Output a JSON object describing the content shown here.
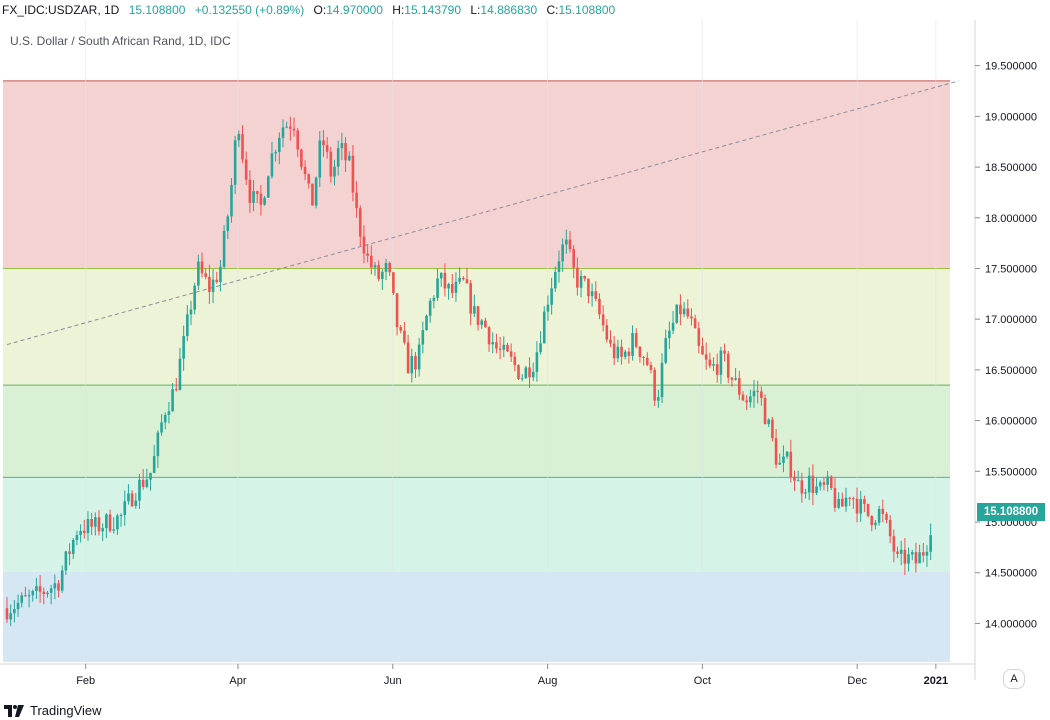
{
  "header": {
    "symbol": "FX_IDC:USDZAR, 1D",
    "last": "15.108800",
    "change": "+0.132550 (+0.89%)",
    "o_label": "O:",
    "o_value": "14.970000",
    "h_label": "H:",
    "h_value": "15.143790",
    "l_label": "L:",
    "l_value": "14.886830",
    "c_label": "C:",
    "c_value": "15.108800"
  },
  "title": "U.S. Dollar / South African Rand, 1D, IDC",
  "last_price_tag": "15.108800",
  "axis_button": "A",
  "logo_text": "TradingView",
  "colors": {
    "up": "#26a69a",
    "down": "#ef5350"
  },
  "chart_data": {
    "type": "candlestick",
    "y_ticks": [
      "14.000000",
      "14.500000",
      "15.000000",
      "15.500000",
      "16.000000",
      "16.500000",
      "17.000000",
      "17.500000",
      "18.000000",
      "18.500000",
      "19.000000",
      "19.500000"
    ],
    "ylim": [
      13.6,
      19.95
    ],
    "x_ticks": [
      {
        "label": "Feb",
        "day": 31
      },
      {
        "label": "Apr",
        "day": 91
      },
      {
        "label": "Jun",
        "day": 152
      },
      {
        "label": "Aug",
        "day": 213
      },
      {
        "label": "Oct",
        "day": 274
      },
      {
        "label": "Dec",
        "day": 335
      },
      {
        "label": "2021",
        "day": 366
      }
    ],
    "xlim": [
      0,
      370
    ],
    "zones": [
      {
        "from": 19.35,
        "to": 17.5,
        "fill": "#f4d2d2",
        "line": "#c0504d"
      },
      {
        "from": 17.5,
        "to": 16.35,
        "fill": "#ecf3d6",
        "line": "#9cc043"
      },
      {
        "from": 16.35,
        "to": 15.44,
        "fill": "#d9f0d5",
        "line": "#5cb85c"
      },
      {
        "from": 15.44,
        "to": 14.51,
        "fill": "#d5f3e6",
        "line": "#3cb9a3"
      },
      {
        "from": 14.51,
        "to": 13.62,
        "fill": "#d4e7f3",
        "line": null
      }
    ],
    "trendline": {
      "from": {
        "day": 0,
        "price": 16.75
      },
      "to": {
        "day": 375,
        "price": 19.35
      }
    },
    "anchors": [
      [
        0,
        14.15
      ],
      [
        10,
        14.25
      ],
      [
        20,
        14.4
      ],
      [
        28,
        14.95
      ],
      [
        35,
        14.95
      ],
      [
        45,
        15.05
      ],
      [
        50,
        15.3
      ],
      [
        57,
        15.5
      ],
      [
        62,
        16.1
      ],
      [
        66,
        16.3
      ],
      [
        70,
        16.8
      ],
      [
        75,
        17.5
      ],
      [
        80,
        17.3
      ],
      [
        84,
        17.5
      ],
      [
        88,
        18.2
      ],
      [
        91,
        19.0
      ],
      [
        93,
        18.6
      ],
      [
        96,
        18.2
      ],
      [
        100,
        18.1
      ],
      [
        103,
        18.5
      ],
      [
        108,
        18.9
      ],
      [
        113,
        18.95
      ],
      [
        117,
        18.45
      ],
      [
        120,
        18.1
      ],
      [
        124,
        18.8
      ],
      [
        128,
        18.4
      ],
      [
        131,
        18.7
      ],
      [
        135,
        18.5
      ],
      [
        138,
        18.0
      ],
      [
        142,
        17.6
      ],
      [
        146,
        17.4
      ],
      [
        150,
        17.5
      ],
      [
        154,
        16.9
      ],
      [
        158,
        16.55
      ],
      [
        162,
        16.6
      ],
      [
        166,
        17.1
      ],
      [
        170,
        17.4
      ],
      [
        175,
        17.25
      ],
      [
        180,
        17.35
      ],
      [
        184,
        17.05
      ],
      [
        188,
        16.95
      ],
      [
        193,
        16.7
      ],
      [
        198,
        16.6
      ],
      [
        203,
        16.45
      ],
      [
        208,
        16.6
      ],
      [
        213,
        17.2
      ],
      [
        217,
        17.6
      ],
      [
        220,
        17.75
      ],
      [
        224,
        17.4
      ],
      [
        229,
        17.3
      ],
      [
        234,
        17.0
      ],
      [
        238,
        16.7
      ],
      [
        242,
        16.6
      ],
      [
        247,
        16.8
      ],
      [
        252,
        16.6
      ],
      [
        256,
        16.2
      ],
      [
        260,
        16.8
      ],
      [
        265,
        17.1
      ],
      [
        269,
        17.0
      ],
      [
        273,
        16.65
      ],
      [
        277,
        16.5
      ],
      [
        282,
        16.6
      ],
      [
        286,
        16.4
      ],
      [
        291,
        16.2
      ],
      [
        296,
        16.3
      ],
      [
        300,
        15.95
      ],
      [
        304,
        15.55
      ],
      [
        308,
        15.6
      ],
      [
        312,
        15.35
      ],
      [
        316,
        15.4
      ],
      [
        320,
        15.3
      ],
      [
        324,
        15.35
      ],
      [
        328,
        15.1
      ],
      [
        332,
        15.3
      ],
      [
        336,
        15.15
      ],
      [
        340,
        15.05
      ],
      [
        344,
        15.1
      ],
      [
        348,
        14.85
      ],
      [
        351,
        14.6
      ],
      [
        354,
        14.65
      ],
      [
        358,
        14.6
      ],
      [
        362,
        14.75
      ],
      [
        365,
        15.1
      ]
    ]
  }
}
